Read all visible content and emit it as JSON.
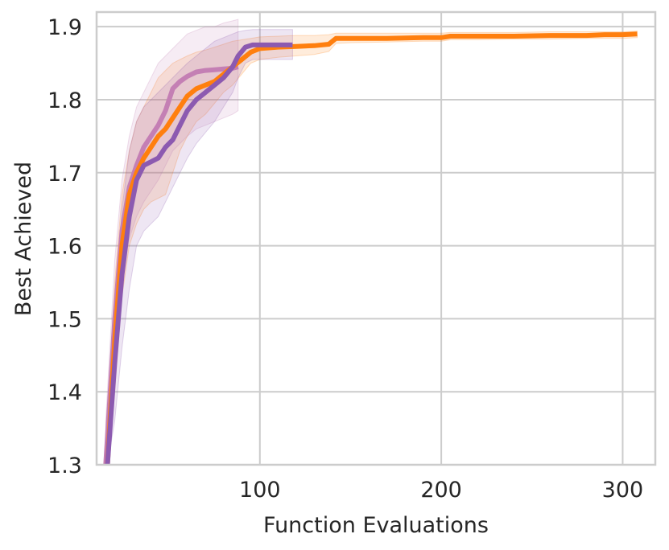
{
  "chart_data": {
    "type": "line",
    "title": "",
    "xlabel": "Function Evaluations",
    "ylabel": "Best Achieved",
    "xlim": [
      10,
      318
    ],
    "ylim": [
      1.3,
      1.92
    ],
    "xticks": [
      100,
      200,
      300
    ],
    "yticks": [
      1.3,
      1.4,
      1.5,
      1.6,
      1.7,
      1.8,
      1.9
    ],
    "xtick_labels": [
      "100",
      "200",
      "300"
    ],
    "ytick_labels": [
      "1.3",
      "1.4",
      "1.5",
      "1.6",
      "1.7",
      "1.8",
      "1.9"
    ],
    "grid": true,
    "legend": null,
    "series": [
      {
        "color": "#ff7f0e",
        "x": [
          16,
          20,
          24,
          28,
          32,
          36,
          40,
          44,
          48,
          52,
          56,
          60,
          65,
          70,
          75,
          80,
          85,
          90,
          95,
          100,
          110,
          120,
          130,
          138,
          142,
          150,
          170,
          190,
          200,
          205,
          220,
          240,
          260,
          280,
          290,
          300,
          308
        ],
        "y": [
          1.3,
          1.47,
          1.6,
          1.67,
          1.7,
          1.72,
          1.735,
          1.75,
          1.76,
          1.775,
          1.79,
          1.805,
          1.815,
          1.82,
          1.825,
          1.835,
          1.845,
          1.855,
          1.865,
          1.87,
          1.872,
          1.873,
          1.874,
          1.876,
          1.884,
          1.884,
          1.884,
          1.885,
          1.885,
          1.887,
          1.887,
          1.887,
          1.888,
          1.888,
          1.889,
          1.889,
          1.89
        ],
        "lower": [
          1.3,
          1.4,
          1.53,
          1.6,
          1.63,
          1.65,
          1.66,
          1.665,
          1.67,
          1.7,
          1.73,
          1.75,
          1.77,
          1.78,
          1.795,
          1.81,
          1.82,
          1.835,
          1.85,
          1.855,
          1.858,
          1.86,
          1.862,
          1.866,
          1.877,
          1.878,
          1.879,
          1.88,
          1.88,
          1.882,
          1.882,
          1.883,
          1.883,
          1.884,
          1.884,
          1.884,
          1.885
        ],
        "upper": [
          1.35,
          1.55,
          1.67,
          1.73,
          1.77,
          1.79,
          1.81,
          1.83,
          1.84,
          1.85,
          1.855,
          1.86,
          1.865,
          1.868,
          1.872,
          1.876,
          1.88,
          1.882,
          1.884,
          1.886,
          1.887,
          1.888,
          1.888,
          1.889,
          1.891,
          1.891,
          1.891,
          1.891,
          1.891,
          1.892,
          1.892,
          1.892,
          1.893,
          1.893,
          1.893,
          1.893,
          1.894
        ]
      },
      {
        "color": "#c47fb4",
        "x": [
          15,
          20,
          24,
          28,
          32,
          36,
          40,
          44,
          48,
          52,
          56,
          60,
          65,
          70,
          75,
          80,
          85,
          88
        ],
        "y": [
          1.3,
          1.5,
          1.62,
          1.68,
          1.71,
          1.735,
          1.75,
          1.765,
          1.785,
          1.815,
          1.825,
          1.832,
          1.838,
          1.84,
          1.841,
          1.842,
          1.843,
          1.845
        ],
        "lower": [
          1.3,
          1.44,
          1.56,
          1.61,
          1.64,
          1.66,
          1.675,
          1.69,
          1.71,
          1.73,
          1.74,
          1.75,
          1.76,
          1.765,
          1.77,
          1.775,
          1.78,
          1.785
        ],
        "upper": [
          1.36,
          1.58,
          1.69,
          1.75,
          1.79,
          1.81,
          1.83,
          1.85,
          1.86,
          1.87,
          1.88,
          1.89,
          1.895,
          1.9,
          1.9,
          1.905,
          1.908,
          1.91
        ]
      },
      {
        "color": "#8c5ab0",
        "x": [
          16,
          20,
          24,
          28,
          32,
          36,
          40,
          44,
          48,
          52,
          56,
          60,
          65,
          70,
          75,
          80,
          85,
          88,
          92,
          96,
          100,
          110,
          118
        ],
        "y": [
          1.3,
          1.44,
          1.56,
          1.64,
          1.69,
          1.71,
          1.715,
          1.72,
          1.735,
          1.745,
          1.765,
          1.785,
          1.8,
          1.81,
          1.82,
          1.83,
          1.845,
          1.86,
          1.872,
          1.875,
          1.875,
          1.875,
          1.875
        ],
        "lower": [
          1.3,
          1.36,
          1.46,
          1.54,
          1.6,
          1.62,
          1.63,
          1.64,
          1.66,
          1.68,
          1.7,
          1.72,
          1.74,
          1.755,
          1.77,
          1.79,
          1.81,
          1.83,
          1.85,
          1.855,
          1.855,
          1.855,
          1.855
        ],
        "upper": [
          1.36,
          1.52,
          1.65,
          1.73,
          1.77,
          1.79,
          1.8,
          1.81,
          1.82,
          1.83,
          1.84,
          1.85,
          1.86,
          1.87,
          1.88,
          1.885,
          1.89,
          1.893,
          1.895,
          1.896,
          1.896,
          1.896,
          1.896
        ]
      }
    ]
  }
}
